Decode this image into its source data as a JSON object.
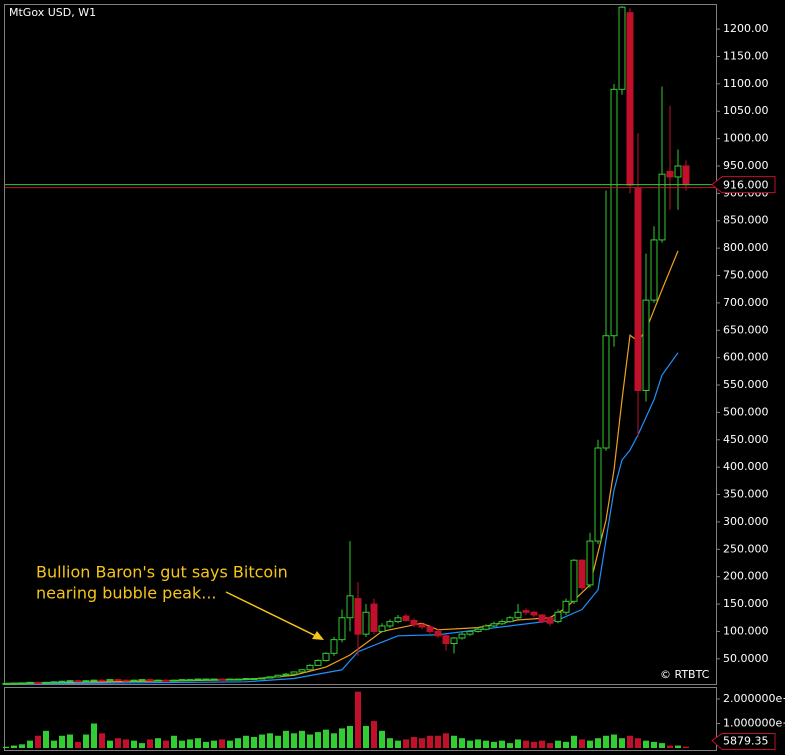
{
  "chart_data": {
    "type": "candlestick",
    "title": "MtGox USD, W1",
    "open": [
      4.5,
      5,
      5.5,
      6,
      7,
      6,
      7,
      8,
      9,
      10,
      9,
      10,
      11,
      10,
      12,
      11,
      10,
      11,
      12,
      11,
      11,
      10,
      11,
      12,
      12,
      13,
      13,
      13,
      12,
      13,
      13,
      14,
      14,
      15,
      17,
      20,
      22,
      26,
      30,
      38,
      47,
      60,
      85,
      125,
      160,
      95,
      150,
      100,
      110,
      118,
      128,
      120,
      112,
      108,
      100,
      92,
      78,
      88,
      95,
      100,
      104,
      110,
      114,
      118,
      125,
      138,
      135,
      130,
      125,
      118,
      135,
      155,
      230,
      185,
      265,
      435,
      640,
      1090,
      1230,
      910,
      540,
      705,
      815,
      940,
      930,
      950
    ],
    "high": [
      6,
      6.5,
      7,
      8,
      8,
      8,
      9,
      10,
      11,
      11,
      11,
      12,
      12,
      13,
      13,
      12,
      12,
      13,
      13,
      12,
      12,
      12,
      13,
      13,
      14,
      14,
      14,
      14,
      14,
      14,
      15,
      15,
      16,
      18,
      21,
      24,
      27,
      31,
      40,
      49,
      62,
      90,
      140,
      265,
      190,
      150,
      160,
      115,
      122,
      130,
      132,
      124,
      116,
      112,
      104,
      95,
      90,
      98,
      102,
      108,
      113,
      118,
      122,
      128,
      150,
      142,
      138,
      132,
      128,
      140,
      160,
      232,
      232,
      280,
      450,
      905,
      1100,
      1242,
      1238,
      1010,
      790,
      840,
      1095,
      1060,
      980,
      960
    ],
    "low": [
      4,
      4.5,
      5,
      5.5,
      5.5,
      5.5,
      6.5,
      7.5,
      8.5,
      8.5,
      8.5,
      9.5,
      9.5,
      9.5,
      10.5,
      9.5,
      9.5,
      10.5,
      10.5,
      10.5,
      9.5,
      9.5,
      10.5,
      11.5,
      11.5,
      12.5,
      12.5,
      11.5,
      11.5,
      12.5,
      12.5,
      13.5,
      13.5,
      14.5,
      16.5,
      19,
      21,
      25,
      29,
      37,
      45,
      55,
      80,
      100,
      55,
      90,
      95,
      98,
      106,
      115,
      118,
      108,
      104,
      96,
      88,
      65,
      60,
      85,
      92,
      98,
      102,
      108,
      112,
      116,
      122,
      130,
      126,
      115,
      110,
      115,
      130,
      150,
      175,
      180,
      260,
      430,
      620,
      1080,
      900,
      455,
      520,
      700,
      810,
      870,
      870,
      905
    ],
    "close": [
      5,
      5.5,
      6,
      7,
      6,
      7,
      8,
      9,
      10,
      9,
      10,
      11,
      10,
      12,
      11,
      10,
      11,
      12,
      11,
      11,
      10,
      11,
      12,
      12,
      13,
      13,
      13,
      12,
      13,
      13,
      14,
      14,
      15,
      17,
      20,
      22,
      26,
      30,
      38,
      47,
      60,
      85,
      125,
      165,
      95,
      135,
      100,
      110,
      118,
      125,
      120,
      112,
      108,
      100,
      92,
      78,
      88,
      95,
      100,
      104,
      110,
      114,
      118,
      125,
      135,
      135,
      130,
      118,
      115,
      135,
      155,
      230,
      180,
      265,
      435,
      640,
      1090,
      1240,
      915,
      540,
      705,
      815,
      935,
      930,
      950,
      916
    ],
    "up_color": "#32cd32",
    "down_color": "#c0102a",
    "ylim": [
      4,
      1244
    ],
    "yticks": [
      {
        "value": 50,
        "label": "50.0000"
      },
      {
        "value": 100,
        "label": "100.000"
      },
      {
        "value": 150,
        "label": "150.000"
      },
      {
        "value": 200,
        "label": "200.000"
      },
      {
        "value": 250,
        "label": "250.000"
      },
      {
        "value": 300,
        "label": "300.000"
      },
      {
        "value": 350,
        "label": "350.000"
      },
      {
        "value": 400,
        "label": "400.000"
      },
      {
        "value": 450,
        "label": "450.000"
      },
      {
        "value": 500,
        "label": "500.000"
      },
      {
        "value": 550,
        "label": "550.000"
      },
      {
        "value": 600,
        "label": "600.000"
      },
      {
        "value": 650,
        "label": "650.000"
      },
      {
        "value": 700,
        "label": "700.000"
      },
      {
        "value": 750,
        "label": "750.000"
      },
      {
        "value": 800,
        "label": "800.000"
      },
      {
        "value": 850,
        "label": "850.000"
      },
      {
        "value": 900,
        "label": "900.000"
      },
      {
        "value": 950,
        "label": "950.000"
      },
      {
        "value": 1000,
        "label": "1000.00"
      },
      {
        "value": 1050,
        "label": "1050.00"
      },
      {
        "value": 1100,
        "label": "1100.00"
      },
      {
        "value": 1150,
        "label": "1150.00"
      },
      {
        "value": 1200,
        "label": "1200.00"
      }
    ],
    "last_price": {
      "value": 916,
      "label": "916.000"
    },
    "moving_averages": [
      {
        "color": "#f0a020",
        "x": [
          0,
          30,
          36,
          40,
          43,
          47,
          52,
          54,
          59,
          64,
          68,
          70,
          73,
          75,
          76,
          77,
          78,
          79,
          80,
          82,
          84
        ],
        "values": [
          5,
          12,
          20,
          35,
          57,
          100,
          115,
          103,
          107,
          121,
          125,
          143,
          185,
          303,
          395,
          523,
          641,
          630,
          650,
          724,
          795
        ]
      },
      {
        "color": "#1e90ff",
        "x": [
          0,
          30,
          36,
          42,
          44,
          49,
          54,
          59,
          64,
          69,
          72,
          74,
          75,
          76,
          77,
          78,
          79,
          81,
          82,
          84
        ],
        "values": [
          4,
          8,
          14,
          30,
          63,
          92,
          94,
          103,
          112,
          121,
          140,
          176,
          267,
          358,
          413,
          431,
          459,
          523,
          568,
          609
        ]
      }
    ],
    "volume": {
      "values": [
        5000,
        10000,
        15000,
        30000,
        50000,
        70000,
        30000,
        50000,
        55000,
        25000,
        55000,
        100000,
        60000,
        30000,
        40000,
        35000,
        30000,
        20000,
        35000,
        40000,
        30000,
        50000,
        30000,
        35000,
        40000,
        25000,
        30000,
        35000,
        30000,
        40000,
        50000,
        45000,
        55000,
        60000,
        50000,
        70000,
        60000,
        70000,
        55000,
        65000,
        75000,
        60000,
        80000,
        90000,
        230000,
        90000,
        110000,
        70000,
        40000,
        30000,
        35000,
        45000,
        40000,
        50000,
        50000,
        60000,
        50000,
        40000,
        30000,
        35000,
        30000,
        25000,
        30000,
        20000,
        35000,
        30000,
        25000,
        30000,
        20000,
        30000,
        25000,
        50000,
        35000,
        30000,
        40000,
        50000,
        55000,
        40000,
        50000,
        40000,
        30000,
        25000,
        20000,
        10000,
        10000,
        5879.35
      ],
      "ylim": [
        0,
        245000
      ],
      "yticks": [
        {
          "value": 200000,
          "label": "2.000000e+"
        },
        {
          "value": 100000,
          "label": "1.000000e+"
        }
      ]
    },
    "annotation": {
      "lines": [
        "Bullion Baron's gut says Bitcoin",
        "nearing bubble peak..."
      ],
      "color": "#f5c518"
    },
    "copyright": "© RTBTC"
  }
}
